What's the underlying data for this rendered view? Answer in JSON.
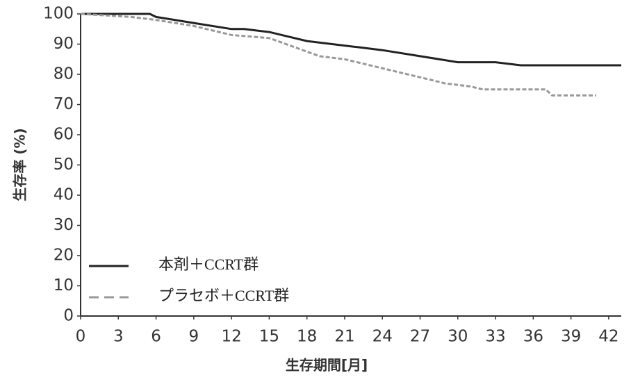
{
  "chart_data": {
    "type": "line",
    "x_label": "生存期間[月]",
    "y_label": "生存率 (%)",
    "xlim": [
      0,
      43
    ],
    "ylim": [
      0,
      100
    ],
    "xticks": [
      0,
      3,
      6,
      9,
      12,
      15,
      18,
      21,
      24,
      27,
      30,
      33,
      36,
      39,
      42
    ],
    "yticks": [
      0,
      10,
      20,
      30,
      40,
      50,
      60,
      70,
      80,
      90,
      100
    ],
    "legend": "lower left",
    "series": [
      {
        "name": "本剤＋CCRT群",
        "color": "#222222",
        "dash": false,
        "x": [
          0,
          5.5,
          6,
          9,
          12,
          13,
          15,
          16,
          18,
          20,
          22,
          24,
          27,
          30,
          33,
          35,
          39,
          43
        ],
        "values": [
          100,
          100,
          99,
          97,
          95,
          95,
          94,
          93,
          91,
          90,
          89,
          88,
          86,
          84,
          84,
          83,
          83,
          83
        ]
      },
      {
        "name": "プラセボ＋CCRT群",
        "color": "#999999",
        "dash": true,
        "x": [
          0,
          4,
          6,
          9,
          12,
          15,
          17,
          19,
          21,
          24,
          27,
          29,
          31,
          32,
          37,
          37.5,
          41
        ],
        "values": [
          100,
          99,
          98,
          96,
          93,
          92,
          89,
          86,
          85,
          82,
          79,
          77,
          76,
          75,
          75,
          73,
          73
        ]
      }
    ]
  }
}
